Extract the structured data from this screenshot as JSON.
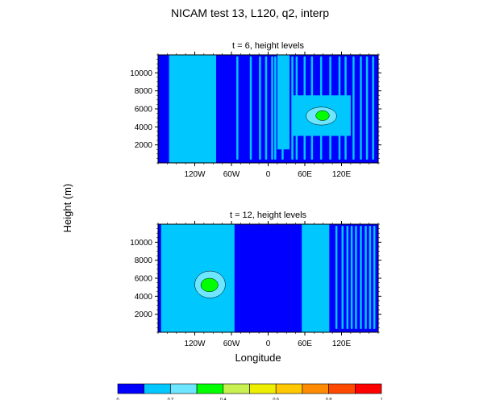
{
  "title": "NICAM test 13, L120, q2, interp",
  "ylabel": "Height (m)",
  "xlabel": "Longitude",
  "colors": {
    "levels": [
      "#0000ff",
      "#00c8ff",
      "#6ee6ff",
      "#00ff00",
      "#c8f050",
      "#eeee00",
      "#ffc800",
      "#ff8c00",
      "#ff4800",
      "#ff0000"
    ]
  },
  "chart_data": [
    {
      "type": "heatmap",
      "title": "t = 6, height levels",
      "x_ticks": [
        "120W",
        "60W",
        "0",
        "60E",
        "120E"
      ],
      "x_tick_values": [
        -120,
        -60,
        0,
        60,
        120
      ],
      "y_ticks": [
        "2000",
        "4000",
        "6000",
        "8000",
        "10000"
      ],
      "y_tick_values": [
        2000,
        4000,
        6000,
        8000,
        10000
      ],
      "xlim": [
        -180,
        180
      ],
      "ylim": [
        0,
        12000
      ],
      "fields": [
        {
          "lon": [
            -162,
            -85
          ],
          "z": [
            0,
            12000
          ],
          "level": 1
        },
        {
          "lon": [
            15,
            35
          ],
          "z": [
            1500,
            12000
          ],
          "level": 1
        },
        {
          "lon": [
            40,
            135
          ],
          "z": [
            3000,
            7500
          ],
          "level": 1
        },
        {
          "lon": [
            62,
            112
          ],
          "z": [
            4200,
            6200
          ],
          "level": 2
        },
        {
          "lon": [
            78,
            100
          ],
          "z": [
            4700,
            5800
          ],
          "level": 3
        }
      ],
      "streaks": [
        -52,
        -30,
        -15,
        -5,
        5,
        10,
        22,
        38,
        45,
        58,
        70,
        85,
        100,
        115,
        125,
        138,
        150,
        160,
        170
      ]
    },
    {
      "type": "heatmap",
      "title": "t = 12, height levels",
      "x_ticks": [
        "120W",
        "60W",
        "0",
        "60E",
        "120E"
      ],
      "x_tick_values": [
        -120,
        -60,
        0,
        60,
        120
      ],
      "y_ticks": [
        "2000",
        "4000",
        "6000",
        "8000",
        "10000"
      ],
      "y_tick_values": [
        2000,
        4000,
        6000,
        8000,
        10000
      ],
      "xlim": [
        -180,
        180
      ],
      "ylim": [
        0,
        12000
      ],
      "fields": [
        {
          "lon": [
            -175,
            -55
          ],
          "z": [
            0,
            12000
          ],
          "level": 1
        },
        {
          "lon": [
            55,
            100
          ],
          "z": [
            0,
            12000
          ],
          "level": 1
        },
        {
          "lon": [
            -120,
            -70
          ],
          "z": [
            3800,
            6800
          ],
          "level": 2
        },
        {
          "lon": [
            -110,
            -82
          ],
          "z": [
            4500,
            6000
          ],
          "level": 3
        }
      ],
      "streaks": [
        110,
        120,
        128,
        135,
        142,
        150,
        158,
        165,
        172
      ]
    }
  ],
  "colorbar": {
    "labels": [
      "0",
      "0.2",
      "0.4",
      "0.6",
      "0.8",
      "1"
    ],
    "values": [
      0,
      0.1,
      0.2,
      0.3,
      0.4,
      0.5,
      0.6,
      0.7,
      0.8,
      0.9,
      1.0
    ]
  }
}
